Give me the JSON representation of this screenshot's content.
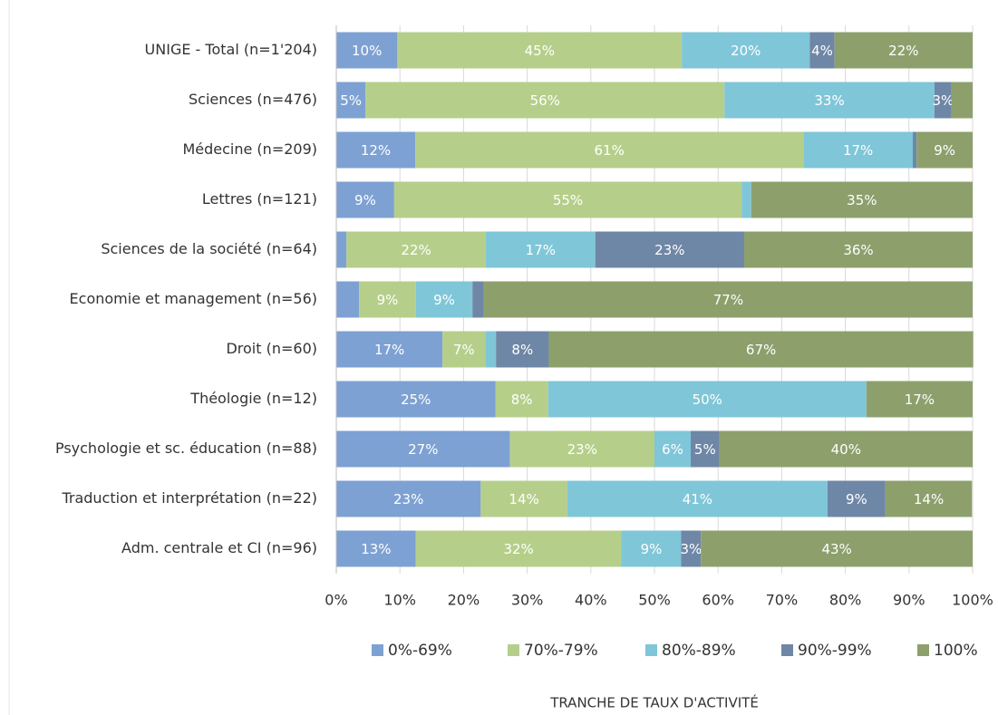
{
  "chart_data": {
    "type": "stacked_bar_horizontal",
    "x_label": "TRANCHE DE TAUX D'ACTIVITÉ",
    "categories": [
      "UNIGE - Total (n=1'204)",
      "Sciences (n=476)",
      "Médecine (n=209)",
      "Lettres (n=121)",
      "Sciences de la société (n=64)",
      "Economie et management (n=56)",
      "Droit (n=60)",
      "Théologie (n=12)",
      "Psychologie et sc. éducation (n=88)",
      "Traduction et interprétation (n=22)",
      "Adm. centrale et CI (n=96)"
    ],
    "series": [
      {
        "name": "0%-69%",
        "color": "#7ea1d3",
        "values": [
          9.6,
          4.6,
          12.4,
          9.1,
          1.6,
          3.6,
          16.7,
          25,
          27.3,
          22.7,
          12.5
        ],
        "value_labels": [
          "10%",
          "5%",
          "12%",
          "9%",
          null,
          null,
          "17%",
          "25%",
          "27%",
          "23%",
          "13%"
        ]
      },
      {
        "name": "70%-79%",
        "color": "#b5cf8a",
        "values": [
          44.7,
          56.4,
          61.0,
          54.6,
          21.9,
          8.9,
          6.7,
          8.3,
          22.7,
          13.6,
          32.3
        ],
        "value_labels": [
          "45%",
          "56%",
          "61%",
          "55%",
          "22%",
          "9%",
          "7%",
          "8%",
          "23%",
          "14%",
          "32%"
        ]
      },
      {
        "name": "80%-89%",
        "color": "#7fc6d8",
        "values": [
          20.1,
          33.0,
          17.2,
          1.5,
          17.2,
          8.9,
          1.7,
          50,
          5.7,
          40.9,
          9.4
        ],
        "value_labels": [
          "20%",
          "33%",
          "17%",
          null,
          "17%",
          "9%",
          null,
          "50%",
          "6%",
          "41%",
          "9%"
        ]
      },
      {
        "name": "90%-99%",
        "color": "#6f87a6",
        "values": [
          3.9,
          2.7,
          0.6,
          0,
          23.4,
          1.8,
          8.3,
          0,
          4.5,
          9.1,
          3.1
        ],
        "value_labels": [
          "4%",
          "3%",
          null,
          null,
          "23%",
          null,
          "8%",
          null,
          "5%",
          "9%",
          "3%"
        ]
      },
      {
        "name": "100%",
        "color": "#8da06c",
        "values": [
          21.7,
          3.3,
          8.8,
          34.8,
          35.9,
          76.8,
          66.7,
          16.7,
          39.8,
          13.6,
          42.7
        ],
        "value_labels": [
          "22%",
          null,
          "9%",
          "35%",
          "36%",
          "77%",
          "67%",
          "17%",
          "40%",
          "14%",
          "43%"
        ]
      }
    ],
    "xlim": [
      0,
      100
    ],
    "xticks": [
      {
        "value": 0,
        "label": "0%"
      },
      {
        "value": 10,
        "label": "10%"
      },
      {
        "value": 20,
        "label": "20%"
      },
      {
        "value": 30,
        "label": "30%"
      },
      {
        "value": 40,
        "label": "40%"
      },
      {
        "value": 50,
        "label": "50%"
      },
      {
        "value": 60,
        "label": "60%"
      },
      {
        "value": 70,
        "label": "70%"
      },
      {
        "value": 80,
        "label": "80%"
      },
      {
        "value": 90,
        "label": "90%"
      },
      {
        "value": 100,
        "label": "100%"
      }
    ],
    "grid": true,
    "legend": "bottom"
  }
}
